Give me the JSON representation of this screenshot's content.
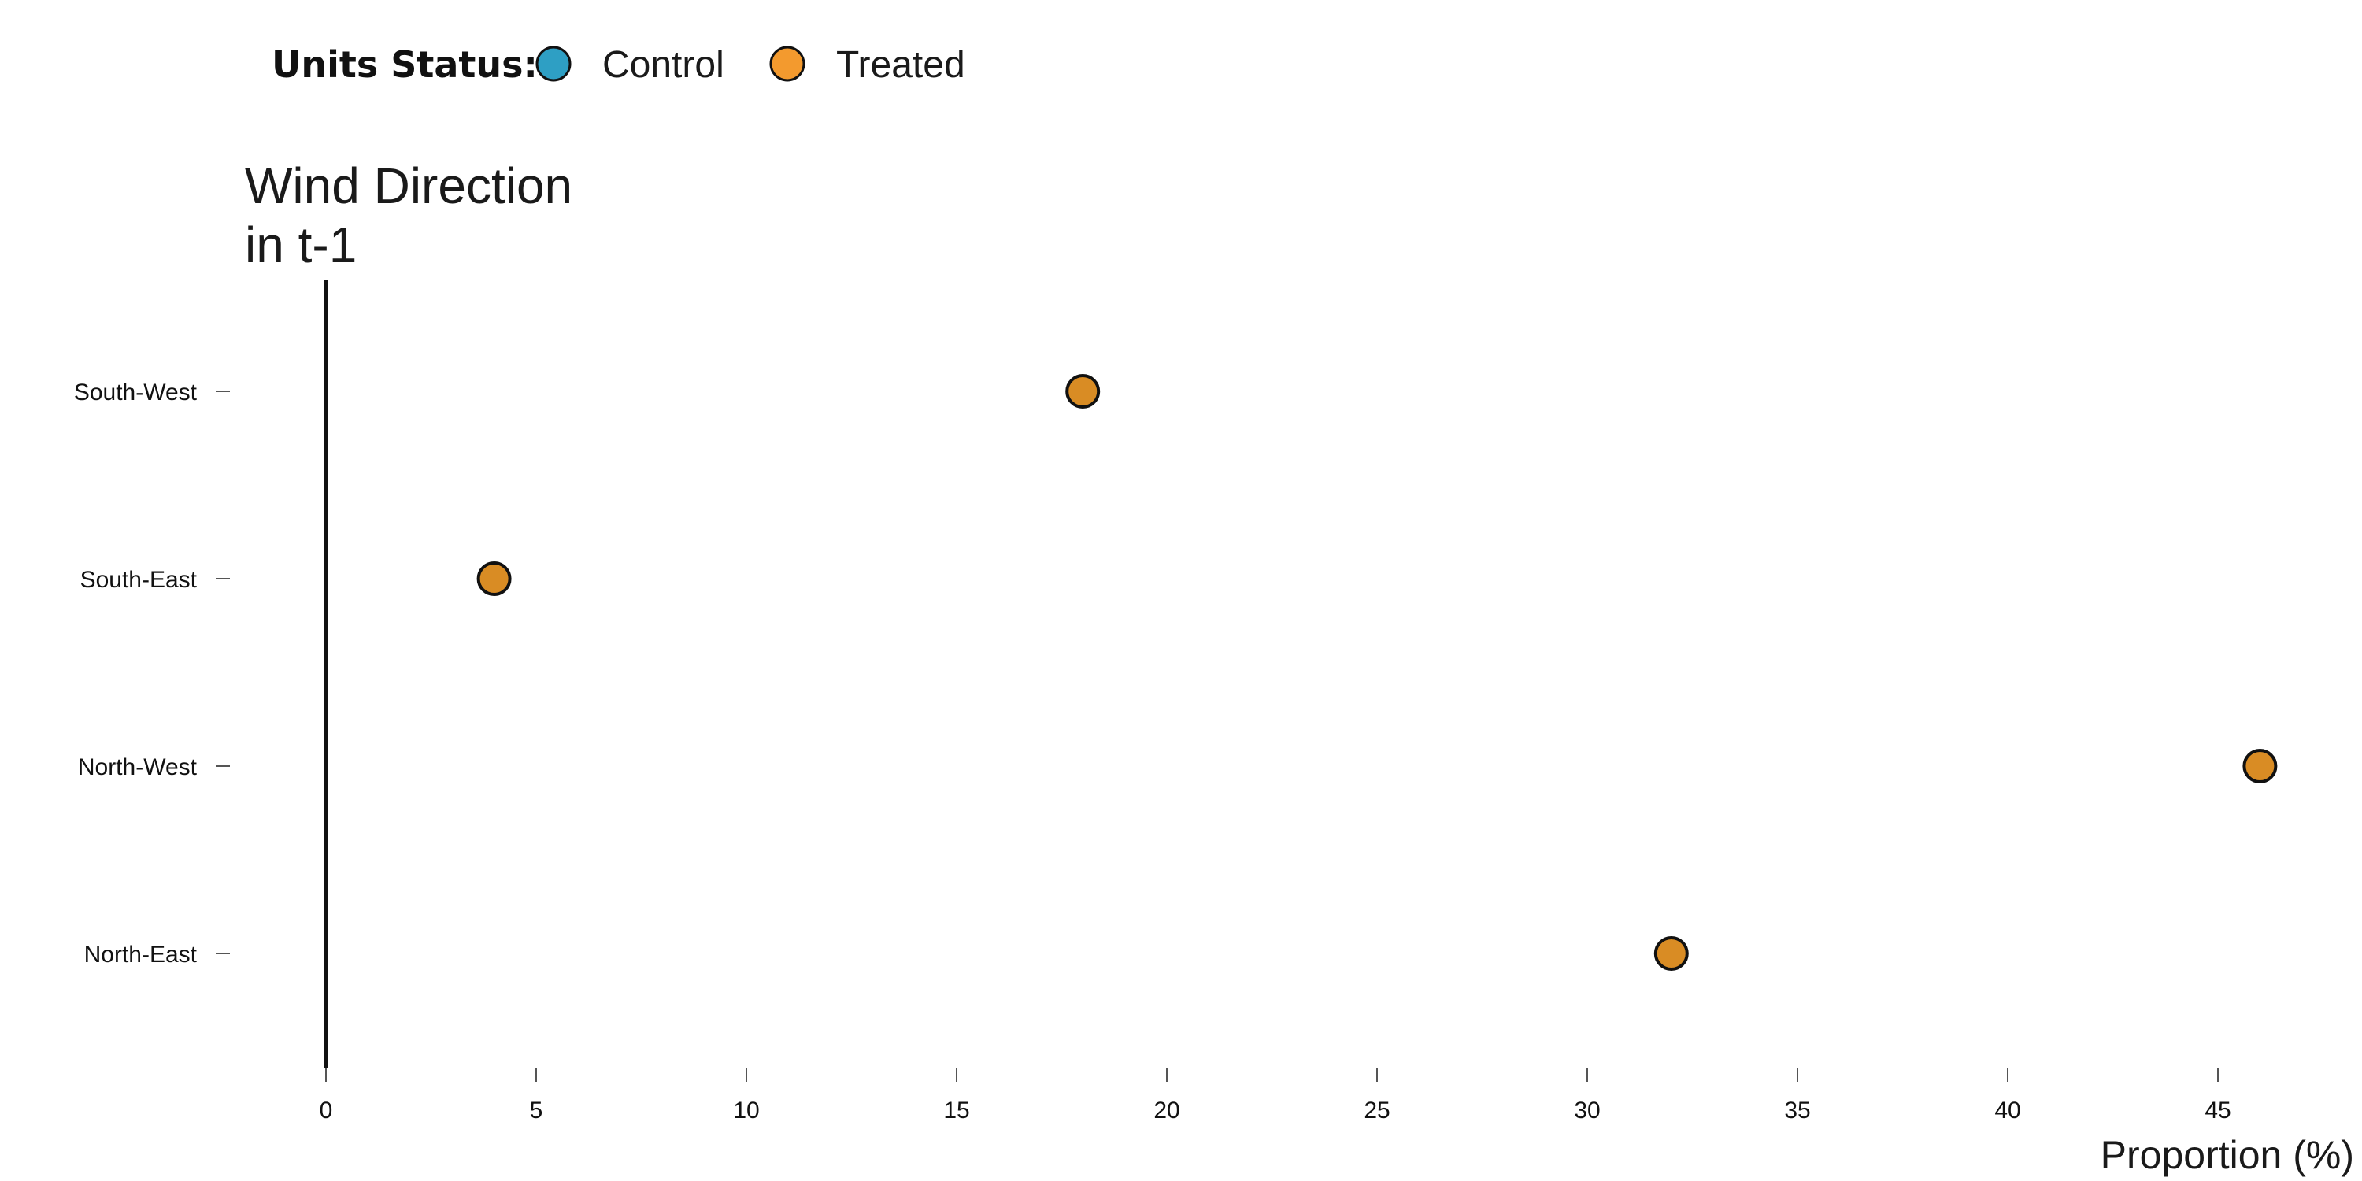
{
  "chart_data": {
    "type": "scatter",
    "legend": {
      "title": "Units Status:",
      "placement": "top-left",
      "entries": [
        {
          "name": "Control",
          "color": "#2e9fc4"
        },
        {
          "name": "Treated",
          "color": "#f39a2e"
        }
      ]
    },
    "ylabel_lines": [
      "Wind Direction",
      "in t-1"
    ],
    "xlabel": "Proportion (%)",
    "categories": [
      "South-West",
      "South-East",
      "North-West",
      "North-East"
    ],
    "series": [
      {
        "name": "Treated",
        "color": "#d98c24",
        "values": [
          18,
          4,
          46,
          32
        ]
      }
    ],
    "xlim": [
      0,
      48
    ],
    "xticks": [
      0,
      5,
      10,
      15,
      20,
      25,
      30,
      35,
      40,
      45
    ],
    "grid": false
  }
}
